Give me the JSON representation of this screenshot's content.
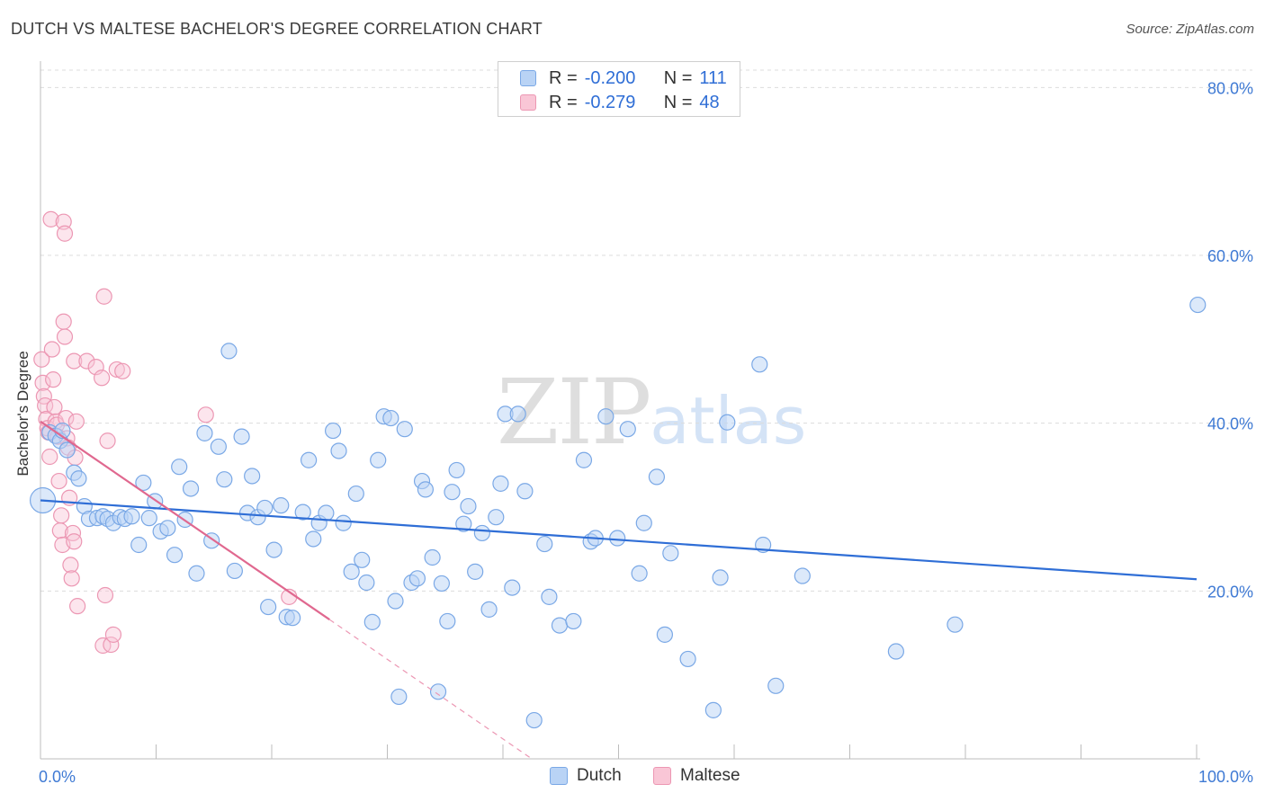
{
  "title": "DUTCH VS MALTESE BACHELOR'S DEGREE CORRELATION CHART",
  "source": "Source: ZipAtlas.com",
  "watermark": {
    "zip": "ZIP",
    "atlas": "atlas"
  },
  "legend": {
    "dutch": {
      "r_label": "R =",
      "r_value": "-0.200",
      "n_label": "N =",
      "n_value": "111"
    },
    "maltese": {
      "r_label": "R =",
      "r_value": "-0.279",
      "n_label": "N =",
      "n_value": "48"
    }
  },
  "bottom_legend": {
    "dutch": "Dutch",
    "maltese": "Maltese"
  },
  "colors": {
    "dutch_fill": "#b9d3f5",
    "dutch_stroke": "#7aa8e6",
    "dutch_line": "#2f6ed6",
    "maltese_fill": "#f9c6d6",
    "maltese_stroke": "#ec97b3",
    "maltese_line": "#e0688f"
  },
  "chart_data": {
    "type": "scatter",
    "title": "DUTCH VS MALTESE BACHELOR'S DEGREE CORRELATION CHART",
    "xlabel": "",
    "ylabel": "Bachelor's Degree",
    "xlim": [
      0,
      100
    ],
    "ylim": [
      0,
      84
    ],
    "x_tick_labels": [
      {
        "value": 0,
        "label": "0.0%"
      },
      {
        "value": 100,
        "label": "100.0%"
      }
    ],
    "y_tick_labels": [
      {
        "value": 20,
        "label": "20.0%"
      },
      {
        "value": 40,
        "label": "40.0%"
      },
      {
        "value": 60,
        "label": "60.0%"
      },
      {
        "value": 80,
        "label": "80.0%"
      }
    ],
    "x_minor_ticks": [
      10,
      20,
      30,
      40,
      50,
      60,
      70,
      80,
      90,
      100
    ],
    "grid": true,
    "legend_position": "top-center",
    "series": [
      {
        "name": "Dutch",
        "r": -0.2,
        "n": 111,
        "trend": {
          "x": [
            0,
            100
          ],
          "y": [
            30.8,
            21.4
          ],
          "dashed_beyond": null
        },
        "points": [
          [
            0.2,
            30.8
          ],
          [
            0.8,
            38.9
          ],
          [
            1.3,
            38.5
          ],
          [
            1.7,
            37.9
          ],
          [
            1.9,
            39.1
          ],
          [
            2.3,
            36.8
          ],
          [
            2.9,
            34.1
          ],
          [
            3.3,
            33.4
          ],
          [
            3.8,
            30.1
          ],
          [
            4.2,
            28.6
          ],
          [
            4.9,
            28.7
          ],
          [
            5.4,
            28.9
          ],
          [
            5.8,
            28.6
          ],
          [
            6.3,
            28.1
          ],
          [
            6.9,
            28.8
          ],
          [
            7.3,
            28.6
          ],
          [
            7.9,
            28.9
          ],
          [
            8.5,
            25.5
          ],
          [
            8.9,
            32.9
          ],
          [
            9.4,
            28.7
          ],
          [
            9.9,
            30.7
          ],
          [
            10.4,
            27.1
          ],
          [
            11.0,
            27.5
          ],
          [
            11.6,
            24.3
          ],
          [
            12.0,
            34.8
          ],
          [
            12.5,
            28.5
          ],
          [
            13.0,
            32.2
          ],
          [
            13.5,
            22.1
          ],
          [
            14.2,
            38.8
          ],
          [
            14.8,
            26.0
          ],
          [
            15.4,
            37.2
          ],
          [
            15.9,
            33.3
          ],
          [
            16.3,
            48.6
          ],
          [
            16.8,
            22.4
          ],
          [
            17.4,
            38.4
          ],
          [
            17.9,
            29.3
          ],
          [
            18.3,
            33.7
          ],
          [
            18.8,
            28.8
          ],
          [
            19.4,
            29.9
          ],
          [
            19.7,
            18.1
          ],
          [
            20.2,
            24.9
          ],
          [
            20.8,
            30.2
          ],
          [
            21.3,
            16.9
          ],
          [
            21.8,
            16.8
          ],
          [
            22.7,
            29.4
          ],
          [
            23.2,
            35.6
          ],
          [
            23.6,
            26.2
          ],
          [
            24.1,
            28.1
          ],
          [
            24.7,
            29.3
          ],
          [
            25.3,
            39.1
          ],
          [
            25.8,
            36.7
          ],
          [
            26.2,
            28.1
          ],
          [
            26.9,
            22.3
          ],
          [
            27.3,
            31.6
          ],
          [
            27.8,
            23.7
          ],
          [
            28.2,
            21.0
          ],
          [
            28.7,
            16.3
          ],
          [
            29.2,
            35.6
          ],
          [
            29.7,
            40.8
          ],
          [
            30.3,
            40.6
          ],
          [
            30.7,
            18.8
          ],
          [
            31.0,
            7.4
          ],
          [
            31.5,
            39.3
          ],
          [
            32.1,
            21.0
          ],
          [
            32.6,
            21.5
          ],
          [
            33.0,
            33.1
          ],
          [
            33.3,
            32.1
          ],
          [
            33.9,
            24.0
          ],
          [
            34.4,
            8.0
          ],
          [
            34.7,
            20.9
          ],
          [
            35.2,
            16.4
          ],
          [
            35.6,
            31.8
          ],
          [
            36.0,
            34.4
          ],
          [
            36.6,
            28.0
          ],
          [
            37.0,
            30.1
          ],
          [
            37.6,
            22.3
          ],
          [
            38.2,
            26.9
          ],
          [
            38.8,
            17.8
          ],
          [
            39.4,
            28.8
          ],
          [
            39.8,
            32.8
          ],
          [
            40.2,
            41.1
          ],
          [
            40.8,
            20.4
          ],
          [
            41.3,
            41.1
          ],
          [
            41.9,
            31.9
          ],
          [
            42.7,
            4.6
          ],
          [
            43.6,
            25.6
          ],
          [
            44.0,
            19.3
          ],
          [
            44.9,
            15.9
          ],
          [
            46.1,
            16.4
          ],
          [
            47.0,
            35.6
          ],
          [
            47.6,
            25.9
          ],
          [
            48.0,
            26.3
          ],
          [
            48.9,
            40.8
          ],
          [
            49.9,
            26.3
          ],
          [
            50.8,
            39.3
          ],
          [
            51.8,
            22.1
          ],
          [
            52.2,
            28.1
          ],
          [
            53.3,
            33.6
          ],
          [
            54.0,
            14.8
          ],
          [
            54.5,
            24.5
          ],
          [
            56.0,
            11.9
          ],
          [
            58.2,
            5.8
          ],
          [
            58.8,
            21.6
          ],
          [
            59.4,
            40.1
          ],
          [
            62.2,
            47.0
          ],
          [
            62.5,
            25.5
          ],
          [
            63.6,
            8.7
          ],
          [
            65.9,
            21.8
          ],
          [
            74.0,
            12.8
          ],
          [
            79.1,
            16.0
          ],
          [
            100.1,
            54.1
          ]
        ]
      },
      {
        "name": "Maltese",
        "r": -0.279,
        "n": 48,
        "trend": {
          "x": [
            0,
            25
          ],
          "y": [
            40.2,
            16.6
          ],
          "dashed_extension": {
            "x": [
              25,
              42.5
            ],
            "y": [
              16.6,
              0
            ]
          }
        },
        "points": [
          [
            0.1,
            47.6
          ],
          [
            0.2,
            44.8
          ],
          [
            0.3,
            43.2
          ],
          [
            0.4,
            42.1
          ],
          [
            0.5,
            40.5
          ],
          [
            0.6,
            39.4
          ],
          [
            0.7,
            38.9
          ],
          [
            0.8,
            36.0
          ],
          [
            0.9,
            64.3
          ],
          [
            1.0,
            48.8
          ],
          [
            1.1,
            45.2
          ],
          [
            1.2,
            41.9
          ],
          [
            1.3,
            40.2
          ],
          [
            1.4,
            39.8
          ],
          [
            1.5,
            38.4
          ],
          [
            1.6,
            33.1
          ],
          [
            1.7,
            27.2
          ],
          [
            1.8,
            29.0
          ],
          [
            1.9,
            25.5
          ],
          [
            2.0,
            52.1
          ],
          [
            2.1,
            50.3
          ],
          [
            2.2,
            40.6
          ],
          [
            2.3,
            38.2
          ],
          [
            2.4,
            37.1
          ],
          [
            2.5,
            31.1
          ],
          [
            2.0,
            64.0
          ],
          [
            2.1,
            62.6
          ],
          [
            2.6,
            23.1
          ],
          [
            2.7,
            21.5
          ],
          [
            2.8,
            26.9
          ],
          [
            2.9,
            25.9
          ],
          [
            2.9,
            47.4
          ],
          [
            3.0,
            35.9
          ],
          [
            3.1,
            40.2
          ],
          [
            3.2,
            18.2
          ],
          [
            4.0,
            47.4
          ],
          [
            4.8,
            46.7
          ],
          [
            5.3,
            45.4
          ],
          [
            5.4,
            13.5
          ],
          [
            5.5,
            55.1
          ],
          [
            5.6,
            19.5
          ],
          [
            5.8,
            37.9
          ],
          [
            6.1,
            13.6
          ],
          [
            6.3,
            14.8
          ],
          [
            6.6,
            46.4
          ],
          [
            7.1,
            46.2
          ],
          [
            14.3,
            41.0
          ],
          [
            21.5,
            19.3
          ]
        ]
      }
    ]
  }
}
